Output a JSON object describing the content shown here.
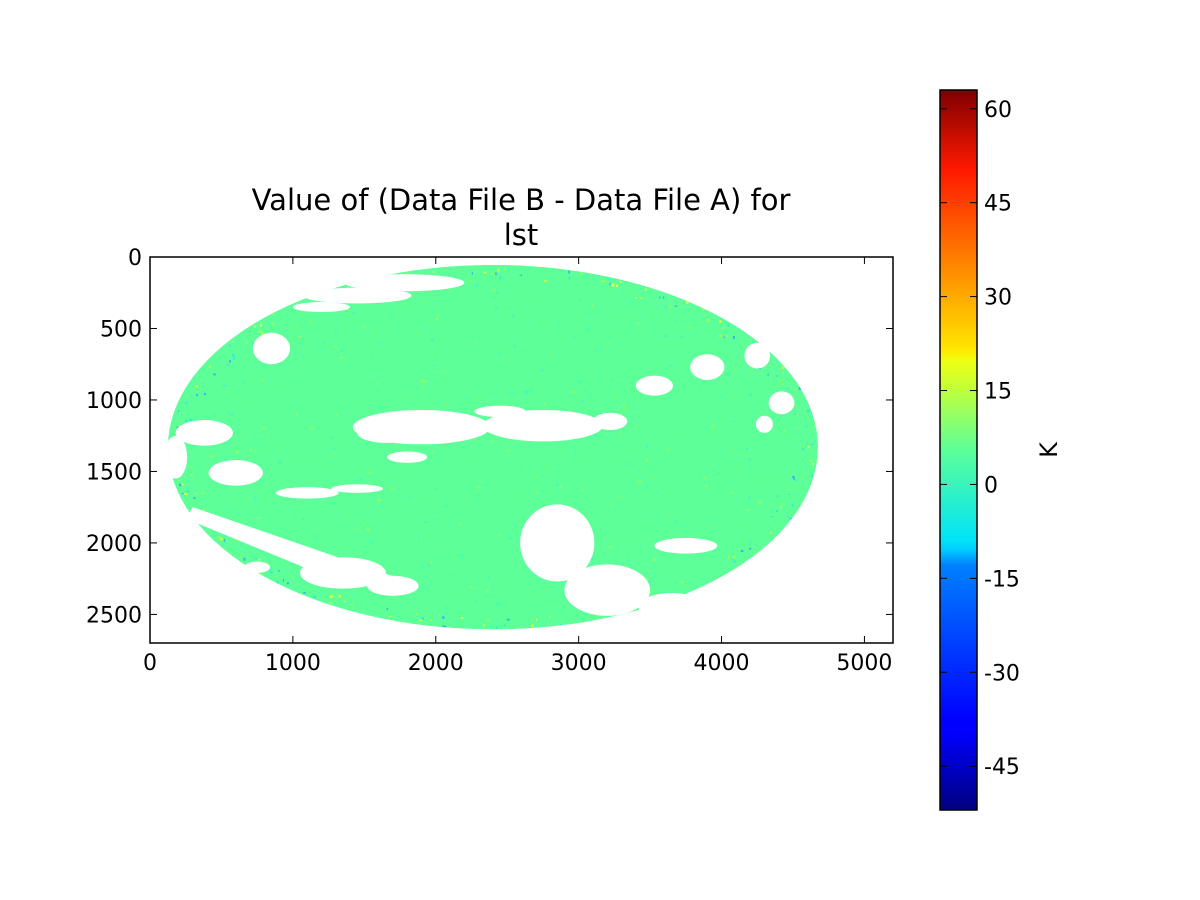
{
  "chart_data": {
    "type": "heatmap",
    "title_lines": [
      "Value of (Data File B - Data File A) for",
      "lst"
    ],
    "xlabel": "",
    "ylabel": "",
    "xlim": [
      0,
      5200
    ],
    "ylim": [
      2700,
      0
    ],
    "y_inverted": true,
    "x_ticks": [
      0,
      1000,
      2000,
      3000,
      4000,
      5000
    ],
    "y_ticks": [
      0,
      500,
      1000,
      1500,
      2000,
      2500
    ],
    "grid": false,
    "colormap": "jet",
    "colorbar": {
      "label": "K",
      "range": [
        -52,
        63
      ],
      "ticks": [
        60,
        45,
        30,
        15,
        0,
        -15,
        -30,
        -45
      ],
      "tick_labels": [
        "60",
        "45",
        "30",
        "15",
        "0",
        "-15",
        "-30",
        "-45"
      ]
    },
    "dominant_value": 0,
    "dominant_color": "#5cff98",
    "disk": {
      "center_x": 2400,
      "center_y": 1330,
      "radius_x": 2275,
      "radius_y": 1275
    },
    "missing_color": "#ffffff"
  }
}
